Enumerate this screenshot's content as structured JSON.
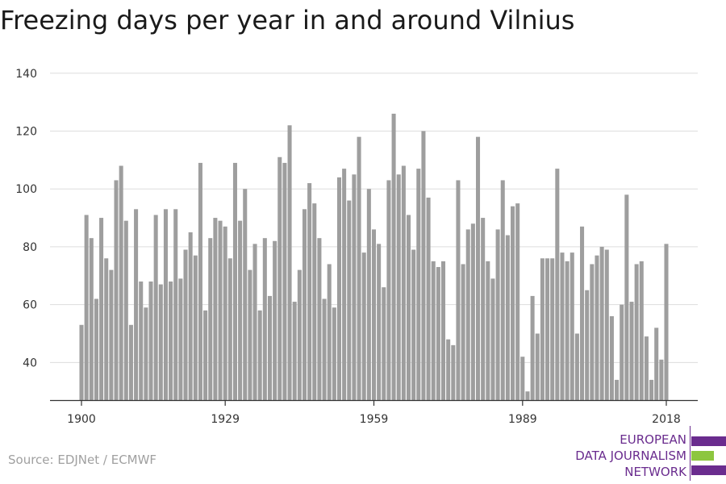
{
  "title": "Freezing days per year in and around Vilnius",
  "source": "Source: EDJNet / ECMWF",
  "logo": {
    "lines": [
      "EUROPEAN",
      "DATA JOURNALISM",
      "NETWORK"
    ],
    "colors": {
      "purple": "#6a2c8e",
      "green": "#8dc63f"
    }
  },
  "colors": {
    "bar": "#9e9e9e",
    "grid": "#dddddd",
    "axis": "#333333"
  },
  "chart_data": {
    "type": "bar",
    "title": "Freezing days per year in and around Vilnius",
    "xlabel": "",
    "ylabel": "",
    "x_start": 1900,
    "x_end": 2018,
    "x_ticks": [
      1900,
      1929,
      1959,
      1989,
      2018
    ],
    "y_ticks": [
      40,
      60,
      80,
      100,
      120,
      140
    ],
    "ylim": [
      27,
      143
    ],
    "grid": true,
    "values": [
      53,
      91,
      83,
      62,
      90,
      76,
      72,
      103,
      108,
      89,
      53,
      93,
      68,
      59,
      68,
      91,
      67,
      93,
      68,
      93,
      69,
      79,
      85,
      77,
      109,
      58,
      83,
      90,
      89,
      87,
      76,
      109,
      89,
      100,
      72,
      81,
      58,
      83,
      63,
      82,
      111,
      109,
      122,
      61,
      72,
      93,
      102,
      95,
      83,
      62,
      74,
      59,
      104,
      107,
      96,
      105,
      118,
      78,
      100,
      86,
      81,
      66,
      103,
      126,
      105,
      108,
      91,
      79,
      107,
      120,
      97,
      75,
      73,
      75,
      48,
      46,
      103,
      74,
      86,
      88,
      118,
      90,
      75,
      69,
      86,
      103,
      84,
      94,
      95,
      42,
      30,
      63,
      50,
      76,
      76,
      76,
      107,
      78,
      75,
      78,
      50,
      87,
      65,
      74,
      77,
      80,
      79,
      56,
      34,
      60,
      98,
      61,
      74,
      75,
      49,
      34,
      52,
      41,
      81
    ]
  }
}
